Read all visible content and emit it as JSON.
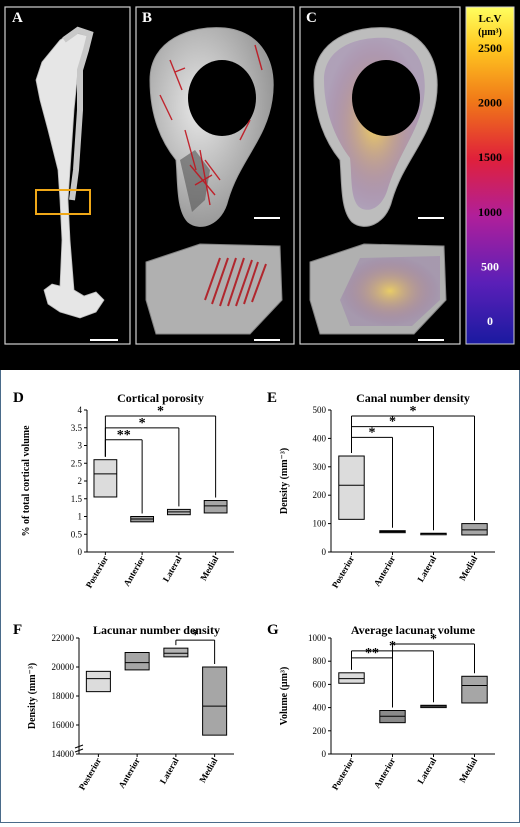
{
  "top_panels": {
    "A": "A",
    "B": "B",
    "C": "C",
    "colorbar": {
      "title_line1": "Lc.V",
      "title_line2": "(µm³)",
      "ticks": [
        "2500",
        "2000",
        "1500",
        "1000",
        "500",
        "0"
      ]
    }
  },
  "chart_data": [
    {
      "panel": "D",
      "type": "box",
      "title": "Cortical porosity",
      "ylabel": "% of total cortical volume",
      "categories": [
        "Posterior",
        "Anterior",
        "Lateral",
        "Medial"
      ],
      "ylim": [
        0,
        4
      ],
      "yticks": [
        "0",
        "0.5",
        "1",
        "1.5",
        "2",
        "2.5",
        "3",
        "3.5",
        "4"
      ],
      "boxes": [
        {
          "low": 1.55,
          "median": 2.2,
          "high": 2.6,
          "color": "#dcdcdc"
        },
        {
          "low": 0.85,
          "median": 0.93,
          "high": 1.0,
          "color": "#9a9a9a"
        },
        {
          "low": 1.05,
          "median": 1.13,
          "high": 1.2,
          "color": "#b4b4b4"
        },
        {
          "low": 1.1,
          "median": 1.3,
          "high": 1.45,
          "color": "#a6a6a6"
        }
      ],
      "significance": [
        {
          "from": 0,
          "to": 1,
          "label": "**"
        },
        {
          "from": 0,
          "to": 2,
          "label": "*"
        },
        {
          "from": 0,
          "to": 3,
          "label": "*"
        }
      ]
    },
    {
      "panel": "E",
      "type": "box",
      "title": "Canal number density",
      "ylabel": "Density (mm⁻³)",
      "categories": [
        "Posterior",
        "Anterior",
        "Lateral",
        "Medial"
      ],
      "ylim": [
        0,
        500
      ],
      "yticks": [
        "0",
        "100",
        "200",
        "300",
        "400",
        "500"
      ],
      "boxes": [
        {
          "low": 115,
          "median": 235,
          "high": 338,
          "color": "#dcdcdc"
        },
        {
          "low": 68,
          "median": 72,
          "high": 75,
          "color": "#777777"
        },
        {
          "low": 63,
          "median": 65,
          "high": 66,
          "color": "#9a9a9a"
        },
        {
          "low": 60,
          "median": 78,
          "high": 100,
          "color": "#a6a6a6"
        }
      ],
      "significance": [
        {
          "from": 0,
          "to": 1,
          "label": "*"
        },
        {
          "from": 0,
          "to": 2,
          "label": "*"
        },
        {
          "from": 0,
          "to": 3,
          "label": "*"
        }
      ]
    },
    {
      "panel": "F",
      "type": "box",
      "title": "Lacunar number density",
      "ylabel": "Density (mm⁻³)",
      "categories": [
        "Posterior",
        "Anterior",
        "Lateral",
        "Medial"
      ],
      "ylim": [
        14000,
        22000
      ],
      "yticks": [
        "14000",
        "16000",
        "18000",
        "20000",
        "22000"
      ],
      "ybreak": true,
      "boxes": [
        {
          "low": 18300,
          "median": 19200,
          "high": 19700,
          "color": "#dcdcdc"
        },
        {
          "low": 19800,
          "median": 20300,
          "high": 21000,
          "color": "#a6a6a6"
        },
        {
          "low": 20700,
          "median": 20950,
          "high": 21300,
          "color": "#b4b4b4"
        },
        {
          "low": 15300,
          "median": 17300,
          "high": 20000,
          "color": "#a6a6a6"
        }
      ],
      "significance": [
        {
          "from": 2,
          "to": 3,
          "label": "*"
        }
      ]
    },
    {
      "panel": "G",
      "type": "box",
      "title": "Average lacunar volume",
      "ylabel": "Volume (µm³)",
      "categories": [
        "Posterior",
        "Anterior",
        "Lateral",
        "Medial"
      ],
      "ylim": [
        0,
        1000
      ],
      "yticks": [
        "0",
        "200",
        "400",
        "600",
        "800",
        "1000"
      ],
      "boxes": [
        {
          "low": 610,
          "median": 650,
          "high": 700,
          "color": "#dcdcdc"
        },
        {
          "low": 270,
          "median": 325,
          "high": 375,
          "color": "#8a8a8a"
        },
        {
          "low": 400,
          "median": 413,
          "high": 420,
          "color": "#9a9a9a"
        },
        {
          "low": 440,
          "median": 590,
          "high": 670,
          "color": "#a6a6a6"
        }
      ],
      "significance": [
        {
          "from": 0,
          "to": 1,
          "label": "**"
        },
        {
          "from": 0,
          "to": 2,
          "label": "*"
        },
        {
          "from": 1,
          "to": 3,
          "label": "*"
        }
      ]
    }
  ]
}
